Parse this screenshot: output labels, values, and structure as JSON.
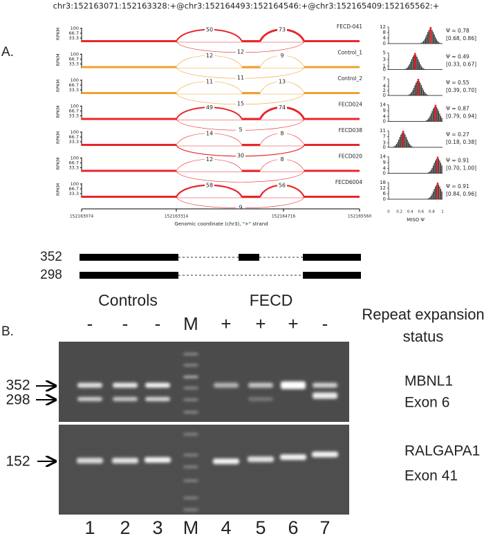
{
  "title": "chr3:152163071:152163328:+@chr3:152164493:152164546:+@chr3:152165409:152165562:+",
  "panel_a": {
    "label": "A.",
    "y_axis_label": "RPKM",
    "y_ticks": [
      "100",
      "66.7",
      "33.3"
    ],
    "tracks": [
      {
        "name": "FECD-041",
        "color": "#e8262a",
        "left_junction": 50,
        "right_junction": 73,
        "skip_junction": 12,
        "psi": 0.78,
        "psi_label": "Ψ = 0.78",
        "ci_label": "[0.68, 0.86]",
        "hist_yticks": [
          12,
          8,
          4,
          0
        ]
      },
      {
        "name": "Control_1",
        "color": "#f0a030",
        "left_junction": 12,
        "right_junction": 9,
        "skip_junction": 11,
        "psi": 0.49,
        "psi_label": "Ψ = 0.49",
        "ci_label": "[0.33, 0.67]",
        "hist_yticks": [
          5,
          3,
          1,
          0
        ]
      },
      {
        "name": "Control_2",
        "color": "#f0a030",
        "left_junction": 11,
        "right_junction": 13,
        "skip_junction": 15,
        "psi": 0.55,
        "psi_label": "Ψ = 0.55",
        "ci_label": "[0.39, 0.70]",
        "hist_yticks": [
          7,
          4,
          2,
          0
        ]
      },
      {
        "name": "FECD024",
        "color": "#e8262a",
        "left_junction": 49,
        "right_junction": 74,
        "skip_junction": 5,
        "psi": 0.87,
        "psi_label": "Ψ = 0.87",
        "ci_label": "[0.79, 0.94]",
        "hist_yticks": [
          14,
          9,
          4,
          0
        ]
      },
      {
        "name": "FECD038",
        "color": "#e8262a",
        "left_junction": 14,
        "right_junction": 8,
        "skip_junction": 30,
        "psi": 0.27,
        "psi_label": "Ψ = 0.27",
        "ci_label": "[0.18, 0.38]",
        "hist_yticks": [
          11,
          7,
          3,
          0
        ]
      },
      {
        "name": "FECD020",
        "color": "#e8262a",
        "left_junction": 12,
        "right_junction": 8,
        "skip_junction": null,
        "psi": 0.91,
        "psi_label": "Ψ = 0.91",
        "ci_label": "[0.70, 1.00]",
        "hist_yticks": [
          14,
          9,
          4,
          0
        ]
      },
      {
        "name": "FECD6004",
        "color": "#e8262a",
        "left_junction": 58,
        "right_junction": 56,
        "skip_junction": 9,
        "psi": 0.91,
        "psi_label": "Ψ = 0.91",
        "ci_label": "[0.84, 0.96]",
        "hist_yticks": [
          18,
          12,
          6,
          0
        ]
      }
    ],
    "x_ticks": [
      "152163074",
      "152163314",
      "152164716",
      "152165560"
    ],
    "x_axis_label": "Genomic coordinate (chr3), \"+\" strand",
    "hist_x_ticks": [
      "0",
      "0.2",
      "0.4",
      "0.6",
      "0.8",
      "1"
    ],
    "hist_x_label": "MISO Ψ"
  },
  "isoforms": [
    "352",
    "298"
  ],
  "panel_b": {
    "label": "B.",
    "groups": [
      "Controls",
      "FECD"
    ],
    "status_label": [
      "Repeat expansion",
      "status"
    ],
    "lanes": [
      {
        "status": "-",
        "number": "1"
      },
      {
        "status": "-",
        "number": "2"
      },
      {
        "status": "-",
        "number": "3"
      },
      {
        "status": "M",
        "number": "M"
      },
      {
        "status": "+",
        "number": "4"
      },
      {
        "status": "+",
        "number": "5"
      },
      {
        "status": "+",
        "number": "6"
      },
      {
        "status": "-",
        "number": "7"
      }
    ],
    "band_sizes": [
      "352",
      "298",
      "152"
    ],
    "genes": [
      [
        "MBNL1",
        "Exon 6"
      ],
      [
        "RALGAPA1",
        "Exon 41"
      ]
    ]
  }
}
